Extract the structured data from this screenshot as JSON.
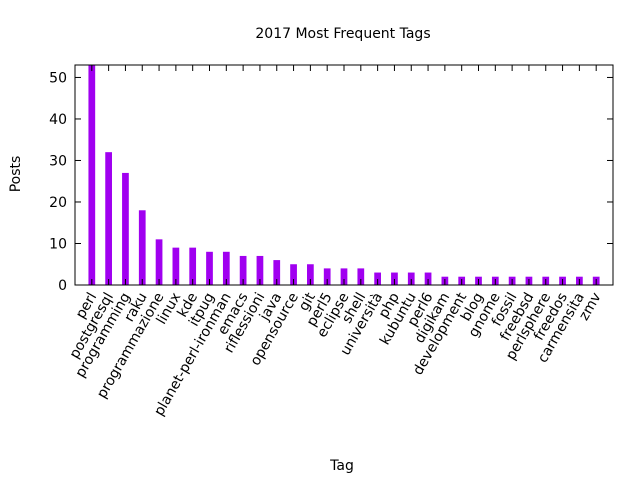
{
  "chart_data": {
    "type": "bar",
    "title": "2017 Most Frequent Tags",
    "xlabel": "Tag",
    "ylabel": "Posts",
    "ylim": [
      0,
      53
    ],
    "yticks": [
      0,
      10,
      20,
      30,
      40,
      50
    ],
    "grid": false,
    "legend": "none",
    "bar_color": "#a000f0",
    "categories": [
      "perl",
      "postgresql",
      "programming",
      "raku",
      "programmazione",
      "linux",
      "kde",
      "itpug",
      "planet-perl-ironman",
      "emacs",
      "riflessioni",
      "java",
      "opensource",
      "git",
      "perl5",
      "eclipse",
      "shell",
      "università",
      "php",
      "kubuntu",
      "perl6",
      "digikam",
      "development",
      "blog",
      "gnome",
      "fossil",
      "freebsd",
      "perlsphere",
      "freedos",
      "carmensita",
      "zmv"
    ],
    "values": [
      53,
      32,
      27,
      18,
      11,
      9,
      9,
      8,
      8,
      7,
      7,
      6,
      5,
      5,
      4,
      4,
      4,
      3,
      3,
      3,
      3,
      2,
      2,
      2,
      2,
      2,
      2,
      2,
      2,
      2,
      2
    ]
  }
}
